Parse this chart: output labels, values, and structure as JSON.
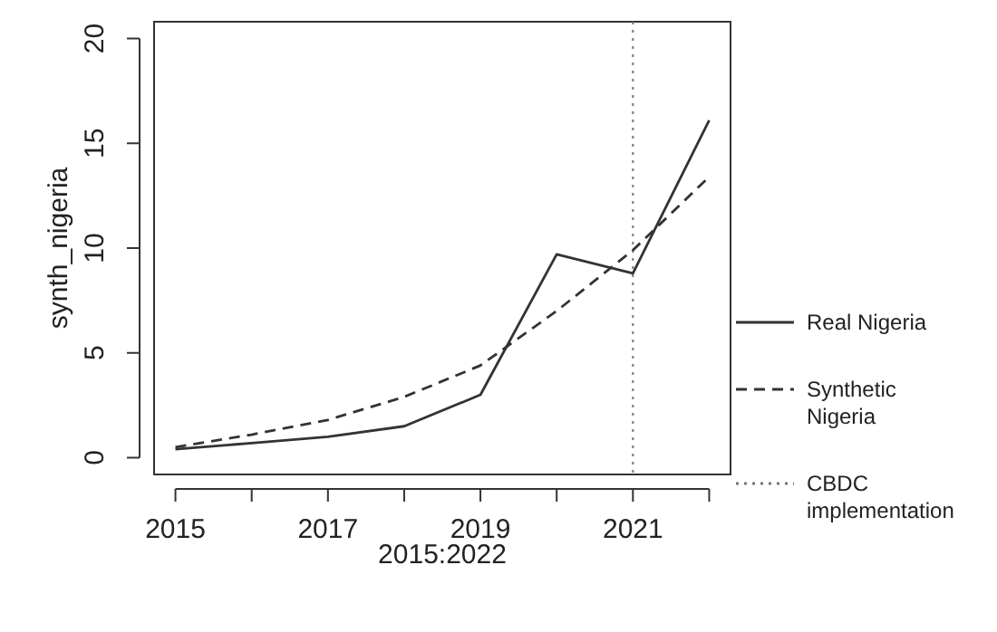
{
  "chart_data": {
    "type": "line",
    "xlabel": "2015:2022",
    "ylabel": "synth_nigeria",
    "x": [
      2015,
      2016,
      2017,
      2018,
      2019,
      2020,
      2021,
      2022
    ],
    "series": [
      {
        "name": "Real Nigeria",
        "color": "#333333",
        "line_style": "solid",
        "values": [
          0.4,
          0.7,
          1.0,
          1.5,
          3.0,
          9.7,
          8.8,
          16.1
        ]
      },
      {
        "name": "Synthetic Nigeria",
        "color": "#333333",
        "line_style": "dashed",
        "values": [
          0.5,
          1.1,
          1.8,
          2.9,
          4.4,
          7.0,
          9.9,
          13.4
        ]
      }
    ],
    "xlim": [
      2014.72,
      2022.28
    ],
    "ylim": [
      -0.8,
      20.8
    ],
    "xticks": [
      2015,
      {
        "value": 2016,
        "label": null
      },
      2017,
      {
        "value": 2018,
        "label": null
      },
      2019,
      {
        "value": 2020,
        "label": null
      },
      2021,
      {
        "value": 2022,
        "label": null
      }
    ],
    "yticks": [
      0,
      5,
      10,
      15,
      20
    ],
    "ref_lines": [
      {
        "axis": "x",
        "value": 2021,
        "label": "CBDC implementation",
        "color": "#777777",
        "line_style": "dotted"
      }
    ],
    "legend": "right",
    "grid": false,
    "marker": "none"
  }
}
